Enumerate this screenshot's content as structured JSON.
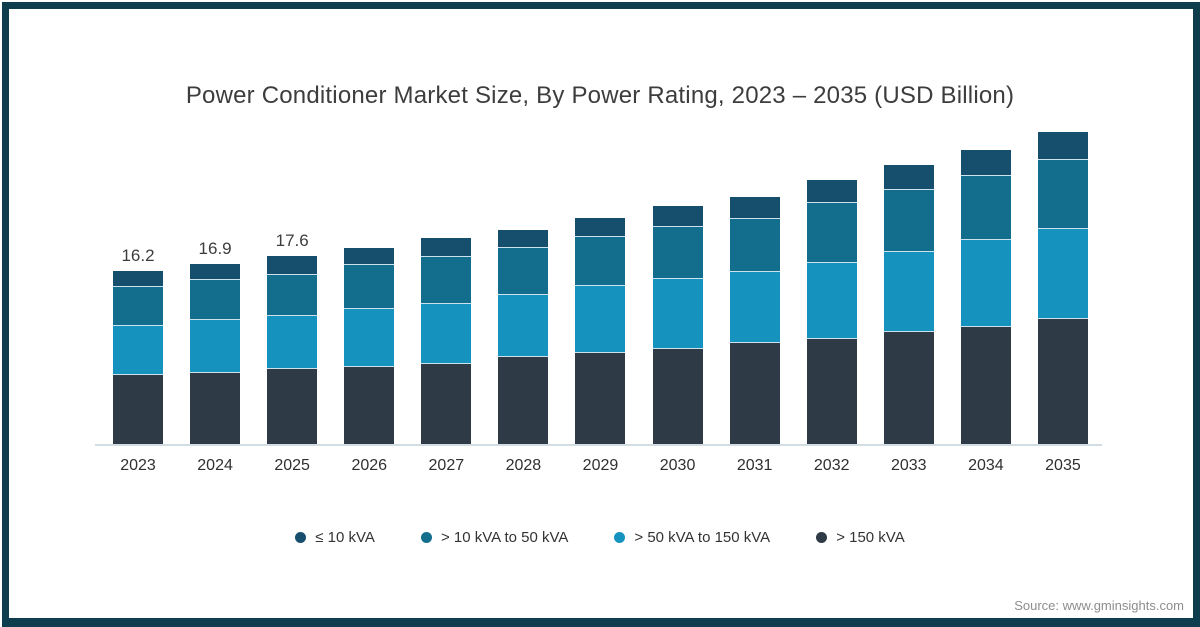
{
  "title": "Power Conditioner Market Size, By Power Rating, 2023 – 2035 (USD Billion)",
  "source": "Source: www.gminsights.com",
  "colors": {
    "frame_border": "#0E3D4D",
    "axis_line": "#D2DCE3",
    "title_text": "#3D3D3D",
    "axis_text": "#303030",
    "source_text": "#8D8D8D",
    "segment_divider": "#CDE2EE"
  },
  "chart_data": {
    "type": "bar",
    "stacked": true,
    "title": "Power Conditioner Market Size, By Power Rating, 2023 – 2035 (USD Billion)",
    "unit": "USD Billion",
    "xlabel": "",
    "ylabel": "",
    "grid": false,
    "legend_position": "bottom",
    "categories": [
      "2023",
      "2024",
      "2025",
      "2026",
      "2027",
      "2028",
      "2029",
      "2030",
      "2031",
      "2032",
      "2033",
      "2034",
      "2035"
    ],
    "series": [
      {
        "name": "≤ 10 kVA",
        "color": "#164F6E",
        "values": [
          1.5,
          1.5,
          1.7,
          1.6,
          1.8,
          1.7,
          1.8,
          2.0,
          2.0,
          2.1,
          2.3,
          2.4,
          2.6
        ]
      },
      {
        "name": "> 10 kVA to 50 kVA",
        "color": "#136E8E",
        "values": [
          3.6,
          3.7,
          3.9,
          4.1,
          4.3,
          4.4,
          4.6,
          4.8,
          5.0,
          5.6,
          5.8,
          6.0,
          6.4
        ]
      },
      {
        "name": "> 50 kVA to 150 kVA",
        "color": "#1593BE",
        "values": [
          4.6,
          5.0,
          4.9,
          5.4,
          5.6,
          5.8,
          6.2,
          6.5,
          6.6,
          7.1,
          7.5,
          8.1,
          8.4
        ]
      },
      {
        "name": "> 150 kVA",
        "color": "#2E3A45",
        "values": [
          6.5,
          6.7,
          7.1,
          7.3,
          7.6,
          8.2,
          8.6,
          9.0,
          9.5,
          9.9,
          10.5,
          11.0,
          11.8
        ]
      }
    ],
    "stack_bottom_to_top": [
      "> 150 kVA",
      "> 50 kVA to 150 kVA",
      "> 10 kVA to 50 kVA",
      "≤ 10 kVA"
    ],
    "bar_labels": [
      "16.2",
      "16.9",
      "17.6",
      "",
      "",
      "",
      "",
      "",
      "",
      "",
      "",
      "",
      ""
    ]
  }
}
